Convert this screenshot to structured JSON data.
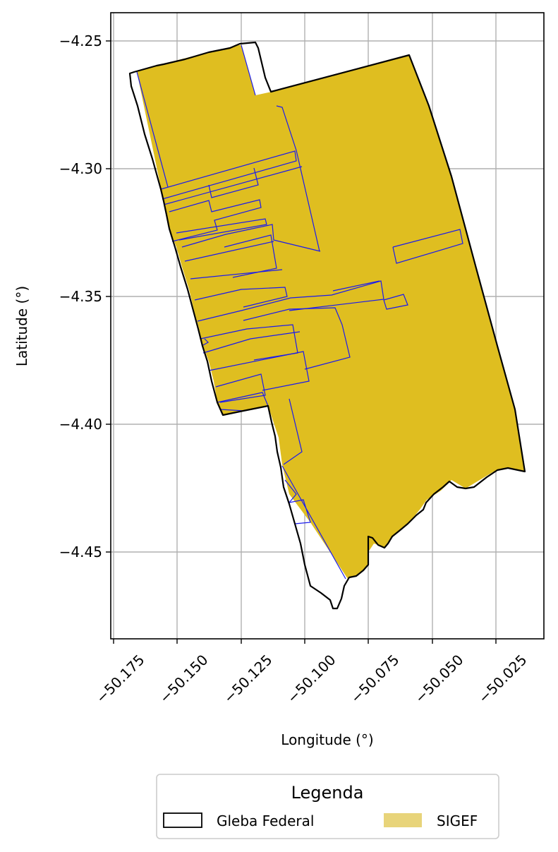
{
  "map": {
    "xlabel": "Longitude (°)",
    "ylabel": "Latitude (°)",
    "x_ticks": [
      "−50.175",
      "−50.150",
      "−50.125",
      "−50.100",
      "−50.075",
      "−50.050",
      "−50.025"
    ],
    "y_ticks": [
      "−4.25",
      "−4.30",
      "−4.35",
      "−4.40",
      "−4.45"
    ],
    "grid": true,
    "colors": {
      "sigef_fill": "#dfbe20",
      "sigef_outline": "#1a1aee",
      "gleba_outline": "#000000",
      "legend_sigef_patch": "#e8d47a"
    }
  },
  "legend": {
    "title": "Legenda",
    "items": [
      {
        "label": "Gleba Federal"
      },
      {
        "label": "SIGEF"
      }
    ]
  }
}
